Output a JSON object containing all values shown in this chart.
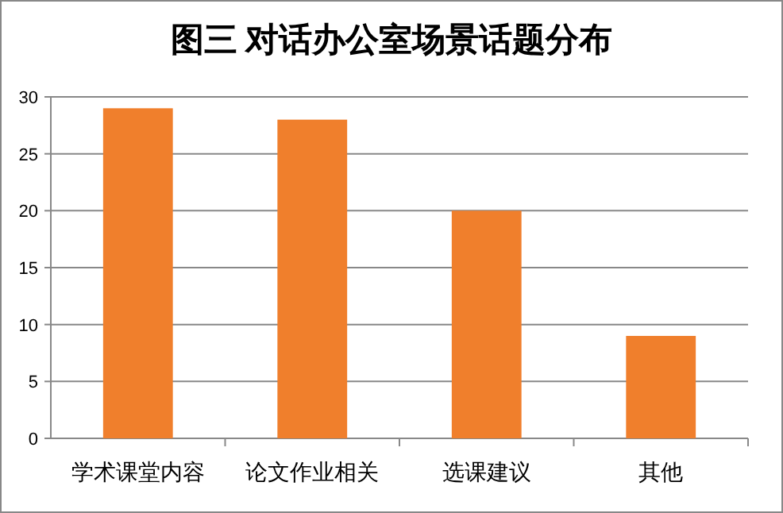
{
  "chart_data": {
    "type": "bar",
    "title": "图三  对话办公室场景话题分布",
    "categories": [
      "学术课堂内容",
      "论文作业相关",
      "选课建议",
      "其他"
    ],
    "values": [
      29,
      28,
      20,
      9
    ],
    "color": "#f07f2c",
    "ylim": [
      0,
      30
    ],
    "yticks": [
      0,
      5,
      10,
      15,
      20,
      25,
      30
    ],
    "grid": "y"
  }
}
